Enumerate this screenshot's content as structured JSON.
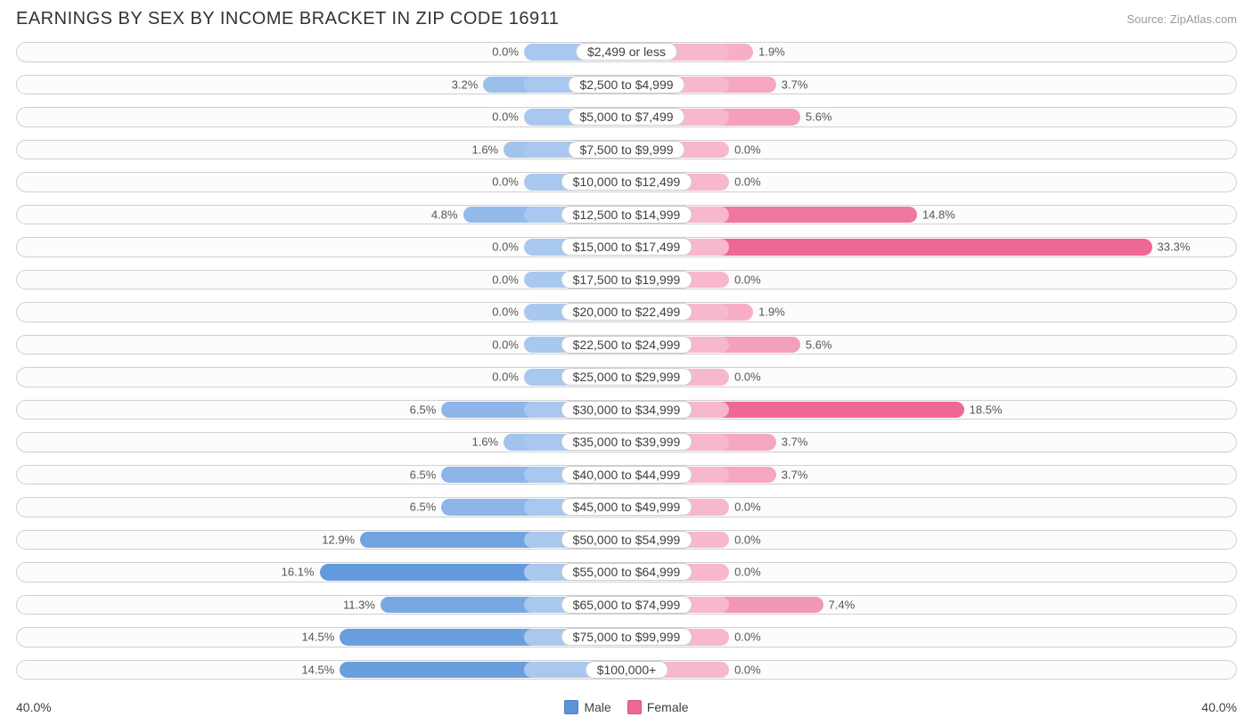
{
  "title": "EARNINGS BY SEX BY INCOME BRACKET IN ZIP CODE 16911",
  "source": "Source: ZipAtlas.com",
  "axis_max_label": "40.0%",
  "axis_max_value": 40.0,
  "base_half_width_pct": 8.4,
  "colors": {
    "male_base": "#a9c8ef",
    "male_strong": "#5a94db",
    "female_base": "#f7b7cc",
    "female_strong": "#ee6896",
    "track_border": "#d0d0d0",
    "label_border": "#cccccc",
    "text": "#404040",
    "row_bg": "#fcfcfc"
  },
  "legend": {
    "male": "Male",
    "female": "Female"
  },
  "rows": [
    {
      "label": "$2,499 or less",
      "male": 0.0,
      "female": 1.9
    },
    {
      "label": "$2,500 to $4,999",
      "male": 3.2,
      "female": 3.7
    },
    {
      "label": "$5,000 to $7,499",
      "male": 0.0,
      "female": 5.6
    },
    {
      "label": "$7,500 to $9,999",
      "male": 1.6,
      "female": 0.0
    },
    {
      "label": "$10,000 to $12,499",
      "male": 0.0,
      "female": 0.0
    },
    {
      "label": "$12,500 to $14,999",
      "male": 4.8,
      "female": 14.8
    },
    {
      "label": "$15,000 to $17,499",
      "male": 0.0,
      "female": 33.3
    },
    {
      "label": "$17,500 to $19,999",
      "male": 0.0,
      "female": 0.0
    },
    {
      "label": "$20,000 to $22,499",
      "male": 0.0,
      "female": 1.9
    },
    {
      "label": "$22,500 to $24,999",
      "male": 0.0,
      "female": 5.6
    },
    {
      "label": "$25,000 to $29,999",
      "male": 0.0,
      "female": 0.0
    },
    {
      "label": "$30,000 to $34,999",
      "male": 6.5,
      "female": 18.5
    },
    {
      "label": "$35,000 to $39,999",
      "male": 1.6,
      "female": 3.7
    },
    {
      "label": "$40,000 to $44,999",
      "male": 6.5,
      "female": 3.7
    },
    {
      "label": "$45,000 to $49,999",
      "male": 6.5,
      "female": 0.0
    },
    {
      "label": "$50,000 to $54,999",
      "male": 12.9,
      "female": 0.0
    },
    {
      "label": "$55,000 to $64,999",
      "male": 16.1,
      "female": 0.0
    },
    {
      "label": "$65,000 to $74,999",
      "male": 11.3,
      "female": 7.4
    },
    {
      "label": "$75,000 to $99,999",
      "male": 14.5,
      "female": 0.0
    },
    {
      "label": "$100,000+",
      "male": 14.5,
      "female": 0.0
    }
  ]
}
